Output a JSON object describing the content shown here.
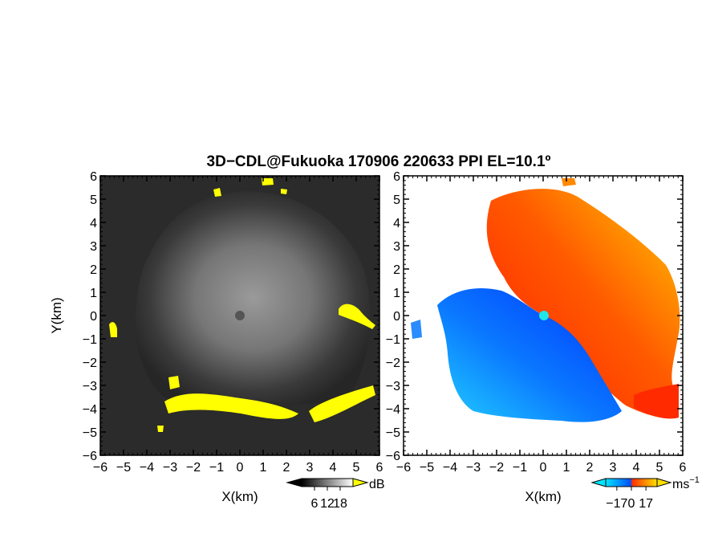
{
  "figure": {
    "title": "3D−CDL@Fukuoka 170906 220633 PPI EL=10.1º"
  },
  "chart_data": [
    {
      "type": "heatmap",
      "panel": "reflectivity",
      "xlabel": "X(km)",
      "ylabel": "Y(km)",
      "xlim": [
        -6,
        6
      ],
      "ylim": [
        -6,
        6
      ],
      "x_ticks": [
        -6,
        -5,
        -4,
        -3,
        -2,
        -1,
        0,
        1,
        2,
        3,
        4,
        5,
        6
      ],
      "y_ticks": [
        -6,
        -5,
        -4,
        -3,
        -2,
        -1,
        0,
        1,
        2,
        3,
        4,
        5,
        6
      ],
      "x_tick_labels": [
        "−6",
        "−5",
        "−4",
        "−3",
        "−2",
        "−1",
        "0",
        "1",
        "2",
        "3",
        "4",
        "5",
        "6"
      ],
      "y_tick_labels": [
        "−6",
        "−5",
        "−4",
        "−3",
        "−2",
        "−1",
        "0",
        "1",
        "2",
        "3",
        "4",
        "5",
        "6"
      ],
      "colorbar": {
        "unit": "dB",
        "ticks": [
          6,
          12,
          18
        ],
        "tick_labels": [
          "6",
          "12",
          "18"
        ],
        "colors": [
          "#000000",
          "#ffffff"
        ],
        "highlight_color": "#ffff00"
      },
      "grid": false
    },
    {
      "type": "heatmap",
      "panel": "doppler-velocity",
      "xlabel": "X(km)",
      "ylabel": "",
      "xlim": [
        -6,
        6
      ],
      "ylim": [
        -6,
        6
      ],
      "x_ticks": [
        -6,
        -5,
        -4,
        -3,
        -2,
        -1,
        0,
        1,
        2,
        3,
        4,
        5,
        6
      ],
      "y_ticks": [
        -6,
        -5,
        -4,
        -3,
        -2,
        -1,
        0,
        1,
        2,
        3,
        4,
        5,
        6
      ],
      "x_tick_labels": [
        "−6",
        "−5",
        "−4",
        "−3",
        "−2",
        "−1",
        "0",
        "1",
        "2",
        "3",
        "4",
        "5",
        "6"
      ],
      "y_tick_labels": [
        "−6",
        "−5",
        "−4",
        "−3",
        "−2",
        "−1",
        "0",
        "1",
        "2",
        "3",
        "4",
        "5",
        "6"
      ],
      "colorbar": {
        "unit": "ms",
        "unit_exponent": "−1",
        "ticks": [
          -17,
          0,
          17
        ],
        "tick_labels": [
          "−17",
          "0",
          "17"
        ],
        "colors": [
          "#00e5ff",
          "#0050ff",
          "#ff3000",
          "#ffe000"
        ]
      },
      "radar_site": [
        0,
        0
      ],
      "radar_site_color": "#22e5e5",
      "grid": false
    }
  ]
}
